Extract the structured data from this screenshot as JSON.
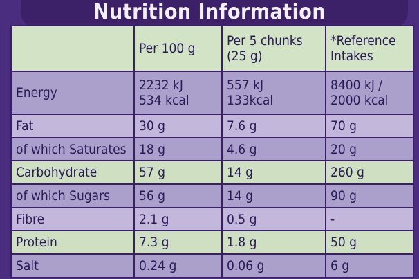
{
  "header": {
    "title": "Nutrition Information"
  },
  "table": {
    "columns": [
      [],
      [
        "Per 100 g"
      ],
      [
        "Per 5 chunks",
        "(25 g)"
      ],
      [
        "*Reference",
        "Intakes"
      ]
    ],
    "rows": [
      [
        [
          "Energy"
        ],
        [
          "2232 kJ",
          "534 kcal"
        ],
        [
          "557 kJ",
          "133kcal"
        ],
        [
          "8400 kJ /",
          "2000 kcal"
        ]
      ],
      [
        [
          "Fat"
        ],
        [
          "30 g"
        ],
        [
          "7.6 g"
        ],
        [
          "70 g"
        ]
      ],
      [
        [
          "of which Saturates"
        ],
        [
          "18 g"
        ],
        [
          "4.6 g"
        ],
        [
          "20 g"
        ]
      ],
      [
        [
          "Carbohydrate"
        ],
        [
          "57 g"
        ],
        [
          "14 g"
        ],
        [
          "260 g"
        ]
      ],
      [
        [
          "of which Sugars"
        ],
        [
          "56 g"
        ],
        [
          "14 g"
        ],
        [
          "90 g"
        ]
      ],
      [
        [
          "Fibre"
        ],
        [
          "2.1 g"
        ],
        [
          "0.5 g"
        ],
        [
          "-"
        ]
      ],
      [
        [
          "Protein"
        ],
        [
          "7.3 g"
        ],
        [
          "1.8 g"
        ],
        [
          "50 g"
        ]
      ],
      [
        [
          "Salt"
        ],
        [
          "0.24 g"
        ],
        [
          "0.06 g"
        ],
        [
          "6 g"
        ]
      ]
    ]
  }
}
